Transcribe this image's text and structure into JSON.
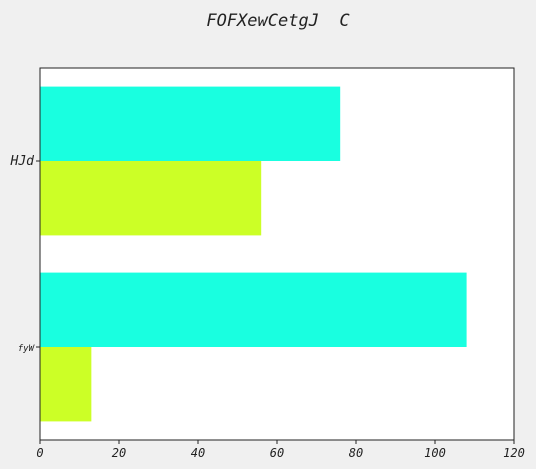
{
  "chart_data": {
    "type": "bar",
    "orientation": "horizontal",
    "title": "FOFXewCetgJ  C",
    "xlabel": "",
    "ylabel": "",
    "categories": [
      "HJd",
      "fyW"
    ],
    "series": [
      {
        "values": [
          76,
          108
        ],
        "color": "#19ffe0"
      },
      {
        "values": [
          56,
          13
        ],
        "color": "#ccff26"
      }
    ],
    "xlim": [
      0,
      120
    ],
    "xticks": [
      0,
      20,
      40,
      60,
      80,
      100,
      120
    ],
    "grid": false,
    "legend": "none"
  }
}
